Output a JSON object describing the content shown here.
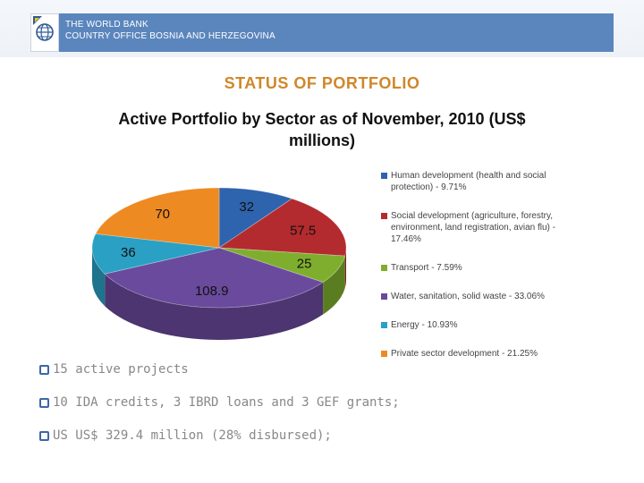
{
  "header": {
    "org": "THE WORLD BANK",
    "office": "COUNTRY OFFICE BOSNIA AND HERZEGOVINA"
  },
  "page_title": "STATUS OF PORTFOLIO",
  "chart_data": {
    "type": "pie",
    "title_line1": "Active Portfolio by Sector as of November, 2010 (US$",
    "title_line2": "millions)",
    "labels": [
      "Human development (health and social protection) - 9.71%",
      "Social development (agriculture, forestry, environment, land registration, avian flu) - 17.46%",
      "Transport - 7.59%",
      "Water, sanitation, solid waste - 33.06%",
      "Energy - 10.93%",
      "Private sector development - 21.25%"
    ],
    "values": [
      32,
      57.5,
      25,
      108.9,
      36,
      70
    ],
    "value_labels": [
      "32",
      "57.5",
      "25",
      "108.9",
      "36",
      "70"
    ],
    "colors": [
      "#2e63ae",
      "#b32b2e",
      "#7fae2e",
      "#6a4a9c",
      "#2aa0c4",
      "#ee8a22"
    ],
    "legend_position": "right"
  },
  "bullets": [
    "15 active projects",
    "10 IDA credits, 3 IBRD loans and 3 GEF grants;",
    "US US$ 329.4 million (28% disbursed);"
  ]
}
